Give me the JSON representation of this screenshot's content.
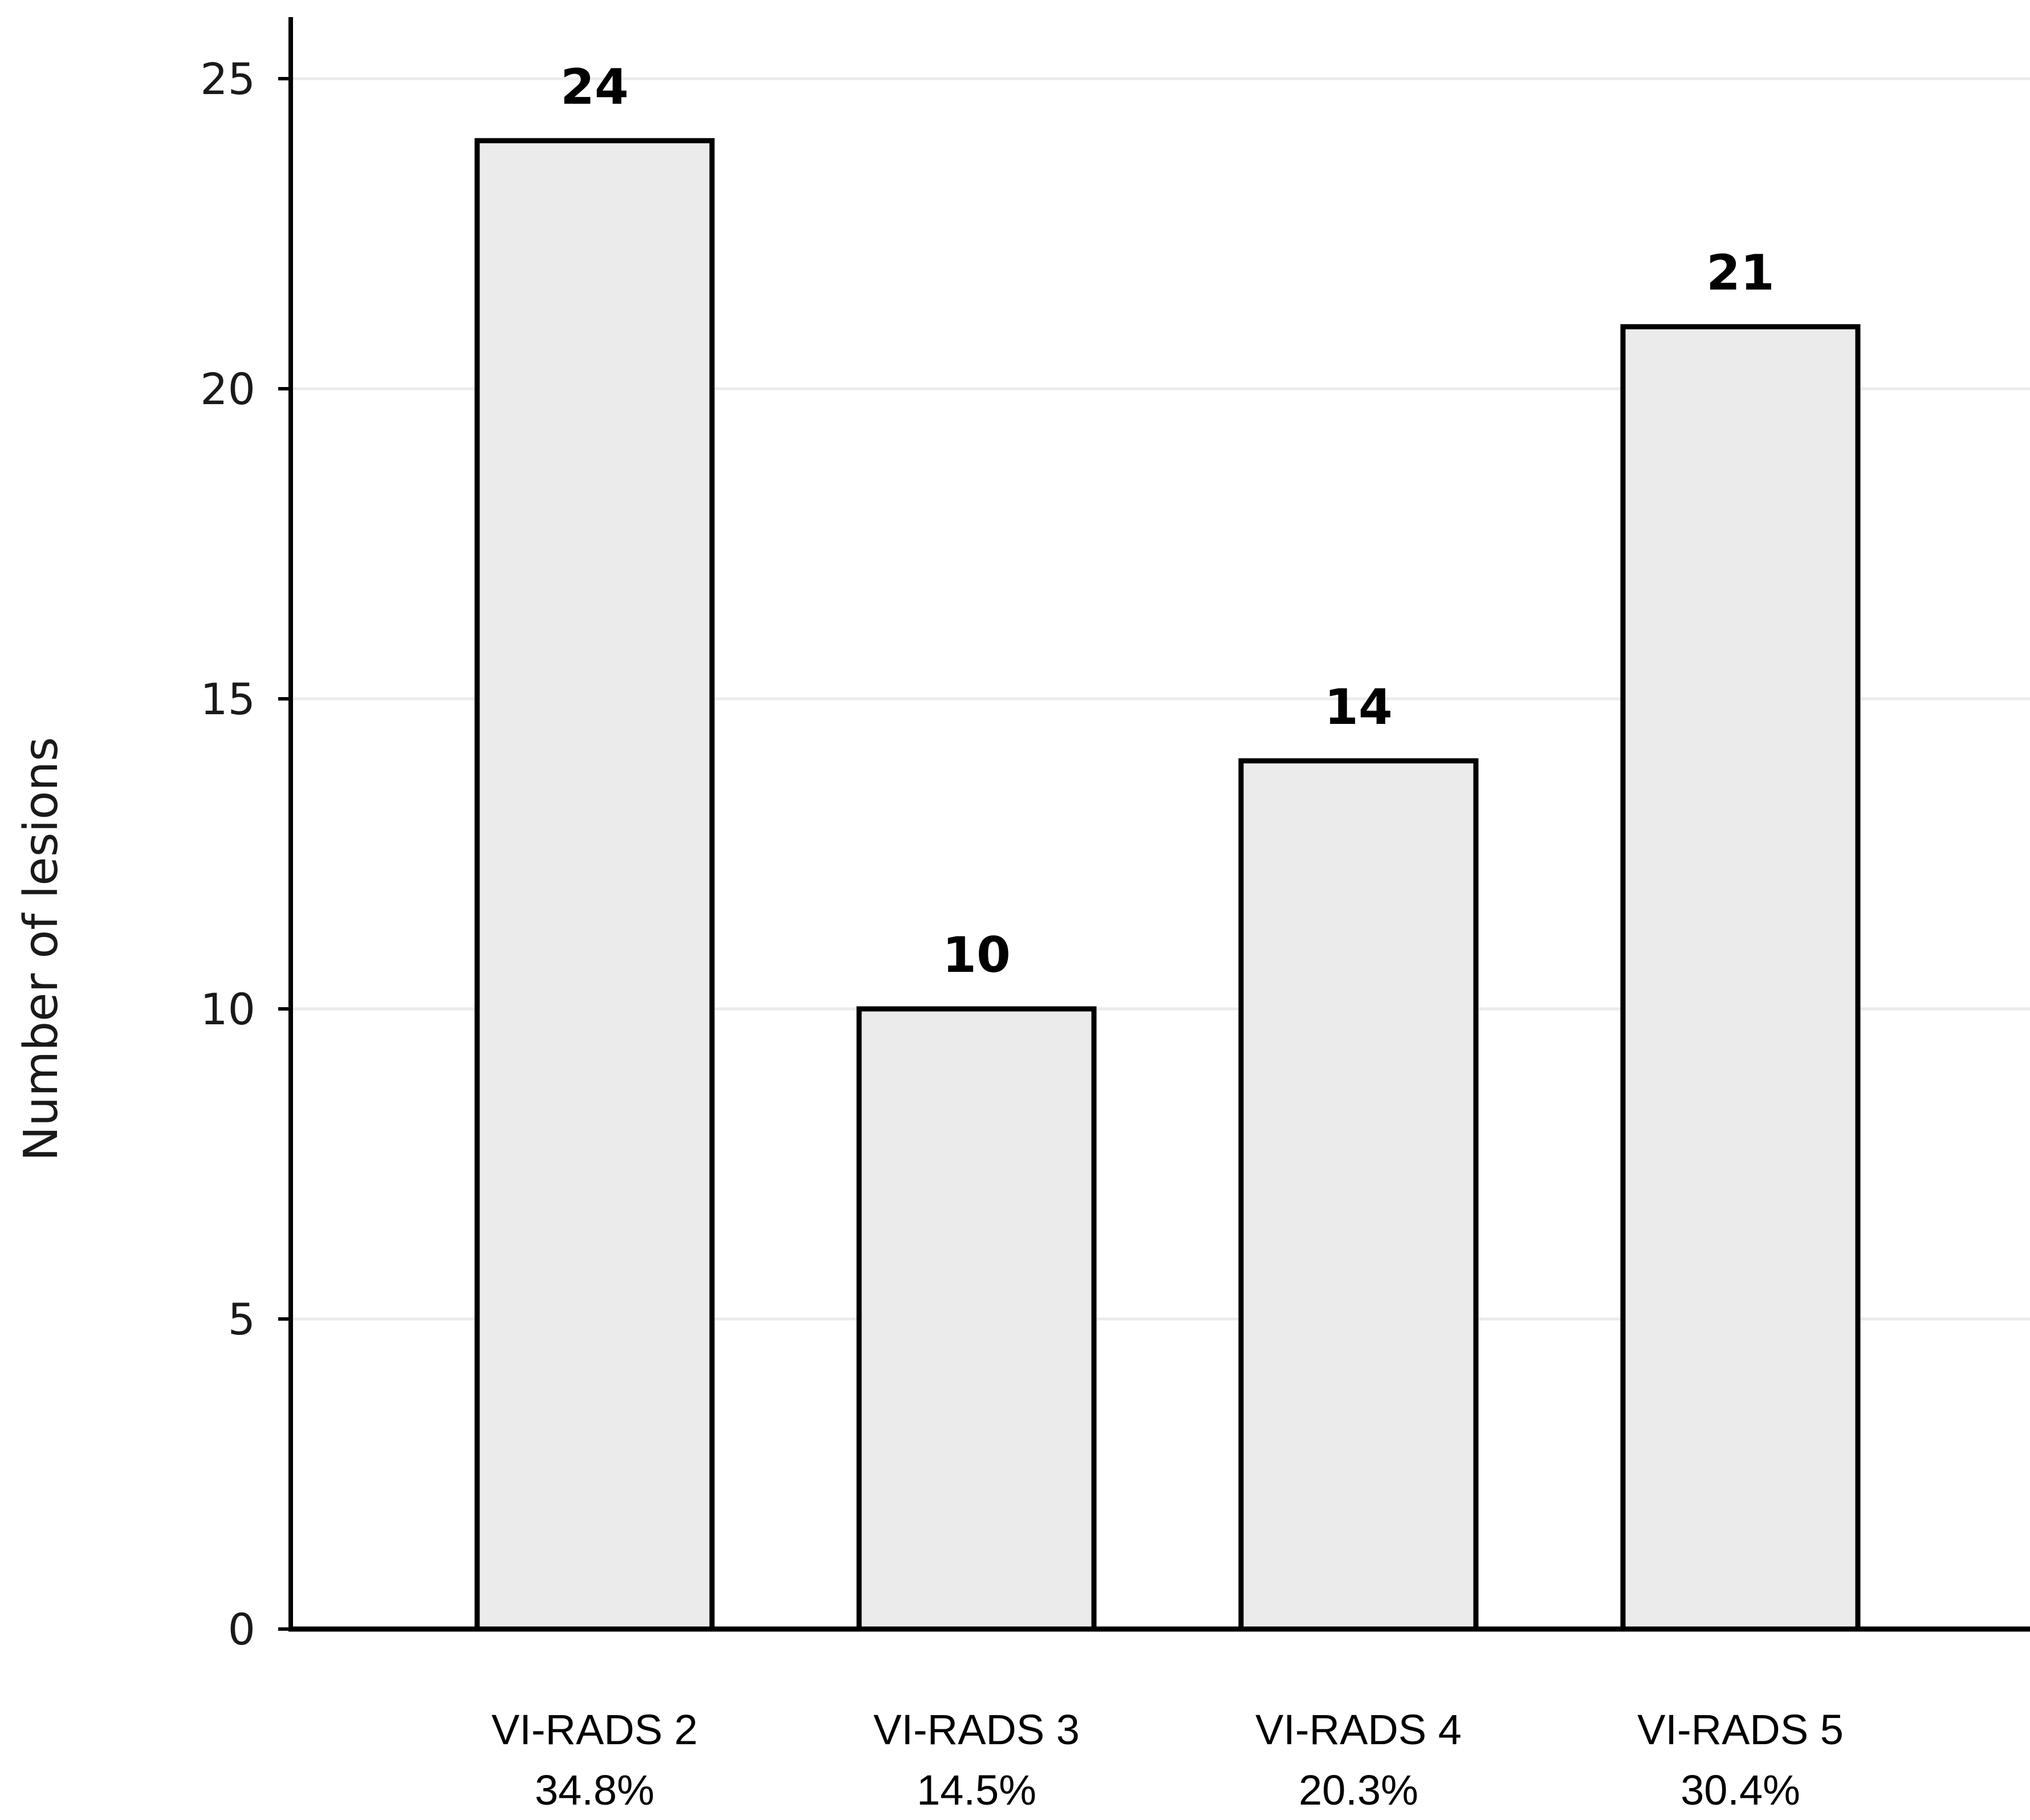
{
  "chart_data": {
    "type": "bar",
    "title": "",
    "xlabel": "",
    "ylabel": "Number of lesions",
    "ylim": [
      0,
      26
    ],
    "yticks": [
      "0",
      "5",
      "10",
      "15",
      "20",
      "25"
    ],
    "ytick_values": [
      0,
      5,
      10,
      15,
      20,
      25
    ],
    "grid": "horizontal",
    "categories": [
      "VI-RADS 2",
      "VI-RADS 3",
      "VI-RADS 4",
      "VI-RADS 5"
    ],
    "percentages": [
      "34.8%",
      "14.5%",
      "20.3%",
      "30.4%"
    ],
    "values": [
      24,
      10,
      14,
      21
    ],
    "value_labels": [
      "24",
      "10",
      "14",
      "21"
    ],
    "colors": {
      "bar_fill": "#ebebeb",
      "bar_stroke": "#000000",
      "grid": "#ebebeb",
      "axis": "#000000"
    }
  }
}
